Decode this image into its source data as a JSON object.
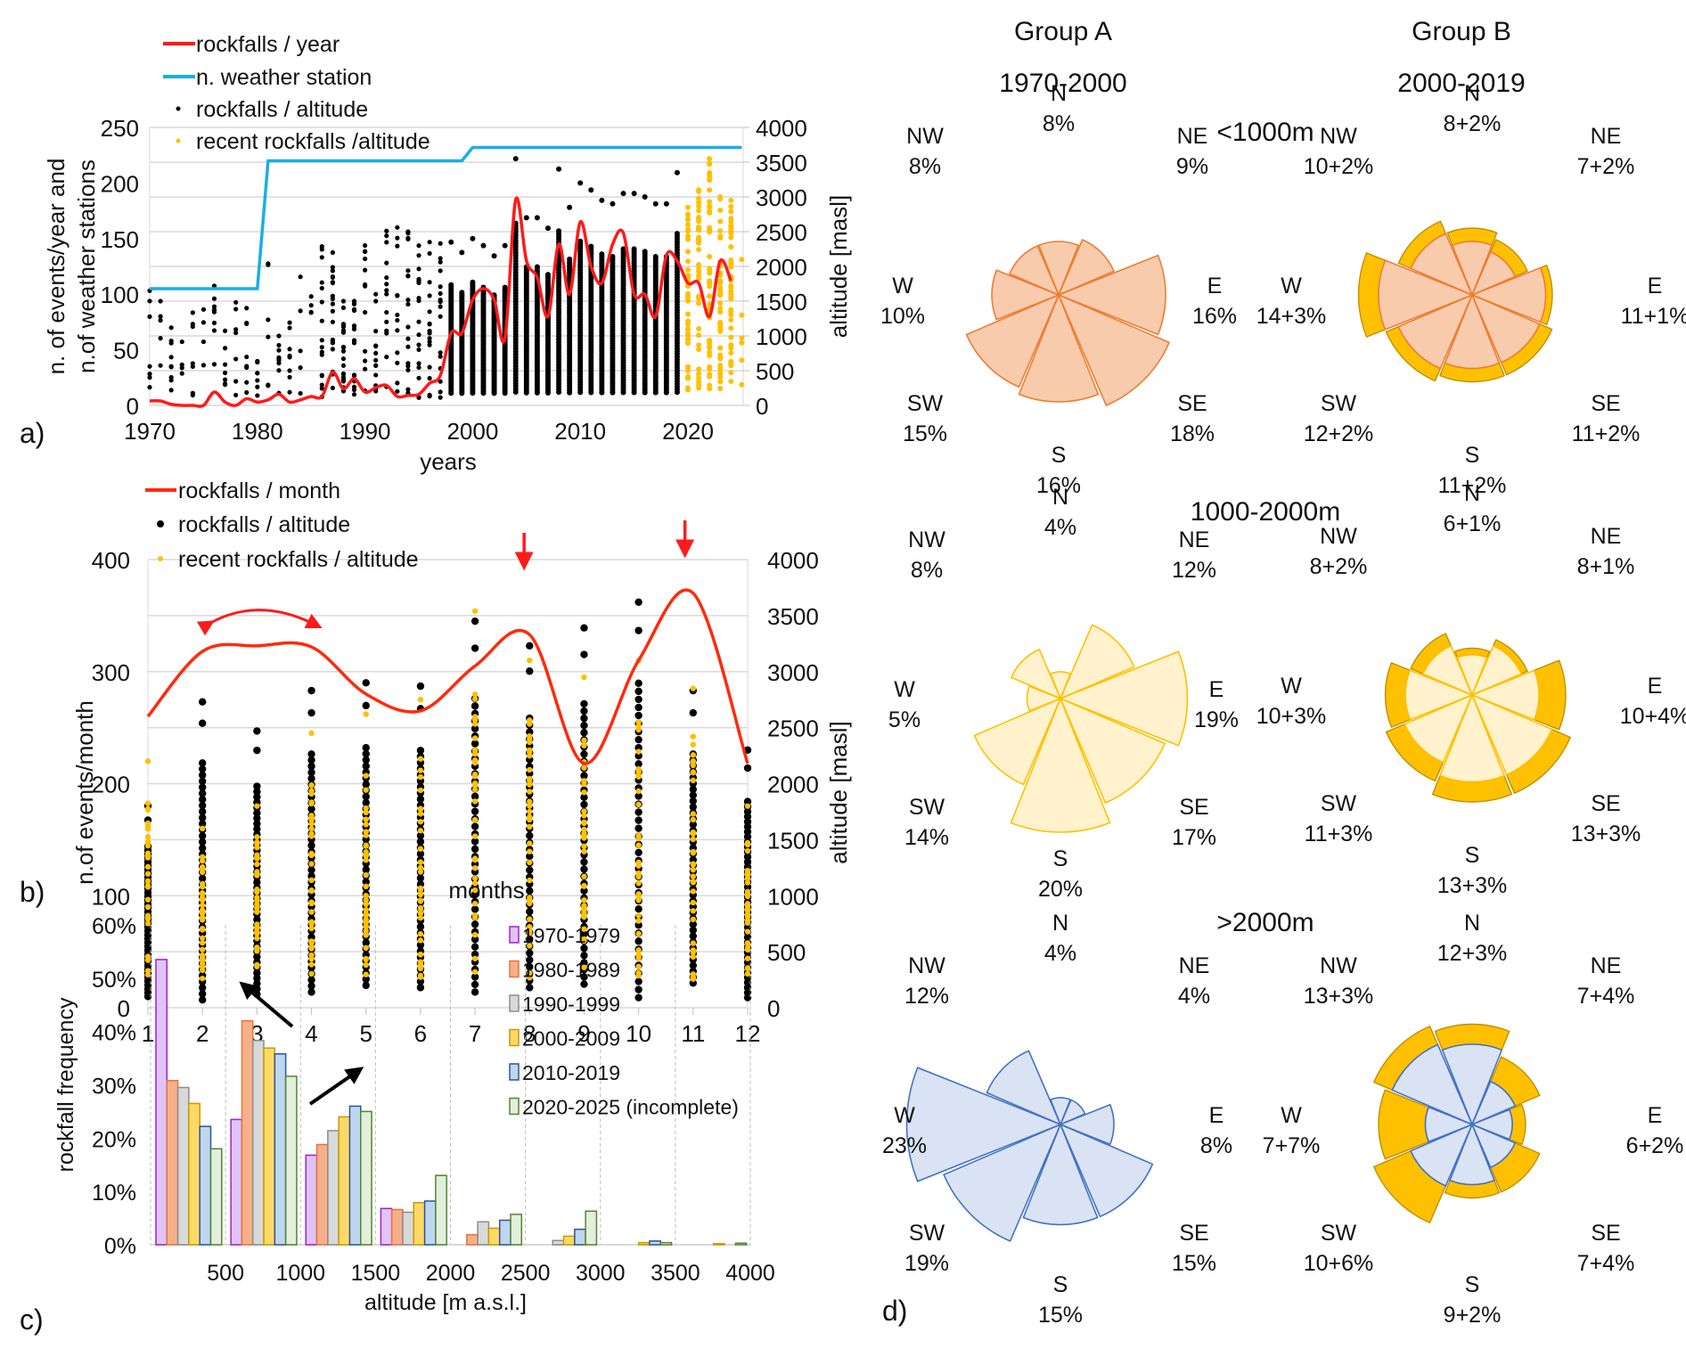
{
  "panel_labels": {
    "a": "a)",
    "b": "b)",
    "c": "c)",
    "d": "d)"
  },
  "chart_data": [
    {
      "id": "a",
      "type": "line",
      "title": "",
      "xlabel": "years",
      "ylabel": "n. of events/year and n.of weather stations",
      "y2label": "altitude [masl]",
      "xlim": [
        1970,
        2025
      ],
      "ylim": [
        0,
        250
      ],
      "y2lim": [
        0,
        4000
      ],
      "xticks": [
        1970,
        1980,
        1990,
        2000,
        2010,
        2020
      ],
      "yticks": [
        0,
        50,
        100,
        150,
        200,
        250
      ],
      "y2ticks": [
        0,
        500,
        1000,
        1500,
        2000,
        2500,
        3000,
        3500,
        4000
      ],
      "grid": true,
      "legend": {
        "placement": "top-left",
        "entries": [
          "rockfalls / year",
          "n. weather station",
          "rockfalls / altitude",
          "recent rockfalls /altitude"
        ]
      },
      "colors": {
        "rockfalls": "#ff1a1a",
        "stations": "#1aaee6",
        "points": "#000000",
        "recent": "#ffc000"
      },
      "series": [
        {
          "name": "rockfalls / year",
          "axis": "left",
          "x": [
            1970,
            1971,
            1972,
            1973,
            1974,
            1975,
            1976,
            1977,
            1978,
            1979,
            1980,
            1981,
            1982,
            1983,
            1984,
            1985,
            1986,
            1987,
            1988,
            1989,
            1990,
            1991,
            1992,
            1993,
            1994,
            1995,
            1996,
            1997,
            1998,
            1999,
            2000,
            2001,
            2002,
            2003,
            2004,
            2005,
            2006,
            2007,
            2008,
            2009,
            2010,
            2011,
            2012,
            2013,
            2014,
            2015,
            2016,
            2017,
            2018,
            2019,
            2020,
            2021,
            2022,
            2023,
            2024
          ],
          "y": [
            4,
            4,
            1,
            0,
            0,
            0,
            12,
            3,
            0,
            6,
            3,
            5,
            10,
            3,
            5,
            8,
            8,
            30,
            15,
            24,
            12,
            16,
            18,
            8,
            9,
            10,
            20,
            27,
            65,
            65,
            95,
            105,
            95,
            60,
            185,
            130,
            115,
            80,
            145,
            100,
            165,
            125,
            110,
            145,
            155,
            100,
            100,
            80,
            135,
            130,
            110,
            110,
            80,
            130,
            112
          ]
        },
        {
          "name": "n. weather station",
          "axis": "left",
          "x": [
            1970,
            1980,
            1981,
            1999,
            2000,
            2025
          ],
          "y": [
            105,
            105,
            220,
            220,
            232,
            232
          ]
        },
        {
          "name": "rockfalls / altitude",
          "axis": "right",
          "type": "scatter",
          "x": [
            1970,
            1970,
            1970,
            1971,
            1971,
            1976,
            1976,
            1979,
            1981,
            1982,
            1984,
            1987,
            1987,
            1988,
            1989,
            1991,
            1993,
            1994,
            1995,
            1996,
            1997,
            1998,
            1999,
            2000,
            2001,
            2002,
            2003,
            2004,
            2005,
            2006,
            2007,
            2008,
            2009,
            2010,
            2011,
            2012,
            2013,
            2014,
            2015,
            2016,
            2017,
            2018,
            2019
          ],
          "y": [
            1650,
            1300,
            380,
            1500,
            200,
            1720,
            700,
            1400,
            2040,
            1000,
            1850,
            2200,
            1700,
            1500,
            1500,
            1600,
            2560,
            2500,
            2300,
            2350,
            2330,
            2350,
            2200,
            2400,
            2300,
            2150,
            2300,
            3550,
            2700,
            2700,
            2550,
            3400,
            2850,
            3200,
            3100,
            2950,
            2900,
            3050,
            3050,
            3000,
            2900,
            2900,
            3350
          ]
        },
        {
          "name": "recent rockfalls /altitude",
          "axis": "right",
          "type": "scatter",
          "x": [
            2020,
            2021,
            2022,
            2023,
            2024
          ],
          "y": [
            2850,
            3100,
            3550,
            3000,
            2950
          ]
        }
      ]
    },
    {
      "id": "b",
      "type": "line",
      "xlabel": "months",
      "ylabel": "n.of events/month",
      "y2label": "altitude [masl]",
      "xlim": [
        1,
        12
      ],
      "ylim": [
        0,
        400
      ],
      "y2lim": [
        0,
        4000
      ],
      "categories": [
        "1",
        "2",
        "3",
        "4",
        "5",
        "6",
        "7",
        "8",
        "9",
        "10",
        "11",
        "12"
      ],
      "yticks": [
        0,
        100,
        200,
        300,
        400
      ],
      "y2ticks": [
        0,
        500,
        1000,
        1500,
        2000,
        2500,
        3000,
        3500,
        4000
      ],
      "grid": true,
      "legend": {
        "placement": "top-left",
        "entries": [
          "rockfalls / month",
          "rockfalls / altitude",
          "recent rockfalls / altitude"
        ]
      },
      "annotations": [
        "double-arrow months 2-4",
        "arrow at month 8",
        "arrow at month 11"
      ],
      "series": [
        {
          "name": "rockfalls / month",
          "axis": "left",
          "x": [
            1,
            2,
            3,
            4,
            5,
            6,
            7,
            8,
            9,
            10,
            11,
            12
          ],
          "y": [
            260,
            318,
            323,
            322,
            280,
            265,
            305,
            333,
            218,
            310,
            370,
            218
          ]
        },
        {
          "name": "rockfalls / altitude (max)",
          "axis": "right",
          "type": "scatter",
          "x": [
            1,
            2,
            3,
            4,
            5,
            6,
            7,
            8,
            9,
            10,
            11,
            12
          ],
          "y": [
            1800,
            2730,
            2470,
            2830,
            2900,
            2870,
            3450,
            3230,
            3390,
            3620,
            2830,
            2300
          ]
        },
        {
          "name": "rockfalls / altitude (min)",
          "axis": "right",
          "type": "scatter",
          "x": [
            1,
            2,
            3,
            4,
            5,
            6,
            7,
            8,
            9,
            10,
            11,
            12
          ],
          "y": [
            100,
            70,
            120,
            140,
            200,
            180,
            140,
            180,
            210,
            90,
            220,
            90
          ]
        },
        {
          "name": "recent rockfalls / altitude (max)",
          "axis": "right",
          "type": "scatter",
          "x": [
            1,
            2,
            3,
            4,
            5,
            6,
            7,
            8,
            9,
            10,
            11,
            12
          ],
          "y": [
            2200,
            1600,
            1800,
            2450,
            2620,
            2750,
            3540,
            3100,
            2950,
            3100,
            2850,
            1800
          ]
        }
      ]
    },
    {
      "id": "c",
      "type": "bar",
      "xlabel": "altitude [m a.s.l.]",
      "ylabel": "rockfall frequency",
      "categories": [
        "0-500",
        "500-1000",
        "1000-1500",
        "1500-2000",
        "2000-2500",
        "2500-3000",
        "3000-3500",
        "3500-4000"
      ],
      "xticks": [
        "500",
        "1000",
        "1500",
        "2000",
        "2500",
        "3000",
        "3500",
        "4000"
      ],
      "yticks": [
        "0%",
        "10%",
        "20%",
        "30%",
        "40%",
        "50%",
        "60%"
      ],
      "ylim": [
        0,
        60
      ],
      "grid": "vertical dashed",
      "legend": {
        "placement": "top-right"
      },
      "series": [
        {
          "name": "1970-1979",
          "fill": "#e0c3f7",
          "stroke": "#a020d0",
          "values": [
            53.5,
            23.5,
            16.8,
            6.8,
            0,
            0,
            0,
            0
          ]
        },
        {
          "name": "1980-1989",
          "fill": "#f5b08a",
          "stroke": "#e8743b",
          "values": [
            30.8,
            42.0,
            18.8,
            6.6,
            1.9,
            0,
            0,
            0
          ]
        },
        {
          "name": "1990-1999",
          "fill": "#d9d9d9",
          "stroke": "#8c8c8c",
          "values": [
            29.5,
            38.3,
            21.4,
            6.1,
            4.3,
            0.8,
            0,
            0
          ]
        },
        {
          "name": "2000-2009",
          "fill": "#ffd966",
          "stroke": "#c99a00",
          "values": [
            26.5,
            36.9,
            24.0,
            7.9,
            3.1,
            1.6,
            0.4,
            0.2
          ]
        },
        {
          "name": "2010-2019",
          "fill": "#bdd7ee",
          "stroke": "#2f5597",
          "values": [
            22.2,
            35.8,
            26.0,
            8.2,
            4.6,
            2.9,
            0.7,
            0
          ]
        },
        {
          "name": "2020-2025 (incomplete)",
          "fill": "#e2efda",
          "stroke": "#548235",
          "values": [
            18.0,
            31.6,
            25.0,
            13.0,
            5.7,
            6.3,
            0.4,
            0.3
          ]
        }
      ],
      "annotations": [
        "arrow up-left near 500-1000",
        "arrow up-right near 1000-1500"
      ]
    },
    {
      "id": "d",
      "type": "rose",
      "directions": [
        "N",
        "NE",
        "E",
        "SE",
        "S",
        "SW",
        "W",
        "NW"
      ],
      "columns": [
        {
          "title": "Group A",
          "period": "1970-2000"
        },
        {
          "title": "Group B",
          "period": "2000-2019"
        }
      ],
      "rows": [
        {
          "label": "<1000m",
          "fill": "#f8cbad",
          "stroke": "#ed7d31",
          "groupA": {
            "values": [
              8,
              9,
              16,
              18,
              16,
              15,
              10,
              8
            ],
            "labels": [
              "8%",
              "9%",
              "16%",
              "18%",
              "16%",
              "15%",
              "10%",
              "8%"
            ]
          },
          "groupB": {
            "values": [
              8,
              7,
              11,
              11,
              11,
              12,
              14,
              10
            ],
            "extra": [
              2,
              2,
              1,
              2,
              2,
              2,
              3,
              2
            ],
            "labels": [
              "8+2%",
              "7+2%",
              "11+1%",
              "11+2%",
              "11+2%",
              "12+2%",
              "14+3%",
              "10+2%"
            ]
          }
        },
        {
          "label": "1000-2000m",
          "fill": "#fff2cc",
          "stroke": "#ffc000",
          "groupA": {
            "values": [
              4,
              12,
              19,
              17,
              20,
              14,
              5,
              8
            ],
            "labels": [
              "4%",
              "12%",
              "19%",
              "17%",
              "20%",
              "14%",
              "5%",
              "8%"
            ]
          },
          "groupB": {
            "values": [
              6,
              8,
              10,
              13,
              13,
              11,
              10,
              8
            ],
            "extra": [
              1,
              1,
              4,
              3,
              3,
              3,
              3,
              2
            ],
            "labels": [
              "6+1%",
              "8+1%",
              "10+4%",
              "13+3%",
              "13+3%",
              "11+3%",
              "10+3%",
              "8+2%"
            ]
          }
        },
        {
          "label": ">2000m",
          "fill": "#dae3f3",
          "stroke": "#4472c4",
          "groupA": {
            "values": [
              4,
              4,
              8,
              15,
              15,
              19,
              23,
              12
            ],
            "labels": [
              "4%",
              "4%",
              "8%",
              "15%",
              "15%",
              "19%",
              "23%",
              "12%"
            ]
          },
          "groupB": {
            "values": [
              12,
              7,
              6,
              7,
              9,
              10,
              7,
              13
            ],
            "extra": [
              3,
              4,
              2,
              4,
              2,
              6,
              7,
              3
            ],
            "labels": [
              "12+3%",
              "7+4%",
              "6+2%",
              "7+4%",
              "9+2%",
              "10+6%",
              "7+7%",
              "13+3%"
            ]
          }
        }
      ],
      "extra_color": "#ffc000",
      "extra_stroke": "#bf9000"
    }
  ]
}
